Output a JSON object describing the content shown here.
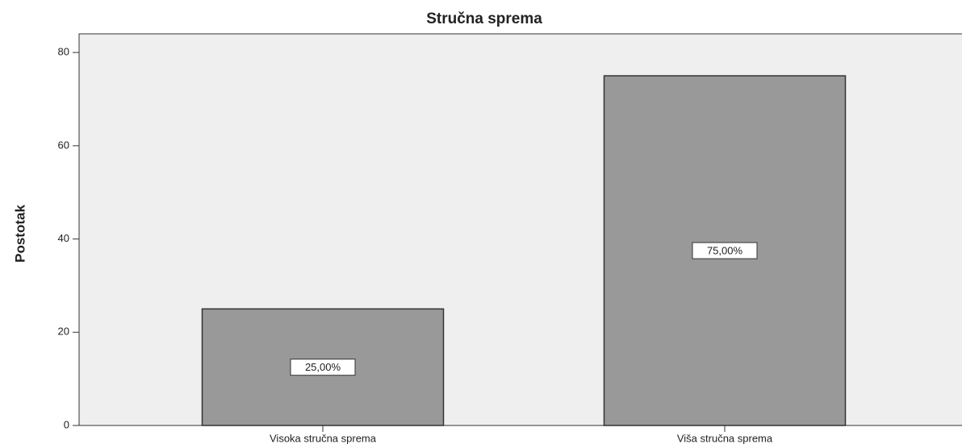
{
  "chart_data": {
    "type": "bar",
    "title": "Stručna sprema",
    "ylabel": "Postotak",
    "categories": [
      "Visoka stručna sprema",
      "Viša stručna sprema"
    ],
    "values": [
      25,
      75
    ],
    "value_labels": [
      "25,00%",
      "75,00%"
    ],
    "color": "#999999",
    "ylim": [
      0,
      84
    ],
    "yticks": [
      0,
      20,
      40,
      60,
      80
    ]
  }
}
